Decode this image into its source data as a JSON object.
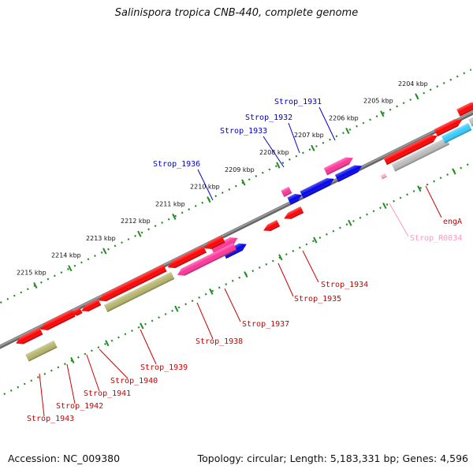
{
  "title": "Salinispora tropica CNB-440, complete genome",
  "footer": {
    "accession": "Accession: NC_009380",
    "summary": "Topology: circular; Length: 5,183,331 bp; Genes: 4,596"
  },
  "colors": {
    "cds": "#ff0000",
    "trna_pink": "#ff3399",
    "blue": "#0000ee",
    "rrna_cyan": "#33ccff",
    "olive": "#b5b56a",
    "gray": "#bbbbbb",
    "pseudo_pink": "#ffaacc",
    "backbone": "#808080",
    "ticks": "#228b22",
    "label_blue": "#0000cc",
    "label_red": "#cc0000",
    "label_pink": "#ff99bb"
  },
  "ticks": [
    "2204 kbp",
    "2205 kbp",
    "2206 kbp",
    "2207 kbp",
    "2208 kbp",
    "2209 kbp",
    "2210 kbp",
    "2211 kbp",
    "2212 kbp",
    "2213 kbp",
    "2214 kbp",
    "2215 kbp"
  ],
  "labels": {
    "top": [
      "Strop_1931",
      "Strop_1932",
      "Strop_1933",
      "Strop_1936"
    ],
    "bottom": [
      "engA",
      "Strop_R0034",
      "Strop_1934",
      "Strop_1935",
      "Strop_1937",
      "Strop_1938",
      "Strop_1939",
      "Strop_1940",
      "Strop_1941",
      "Strop_1942",
      "Strop_1943"
    ]
  }
}
